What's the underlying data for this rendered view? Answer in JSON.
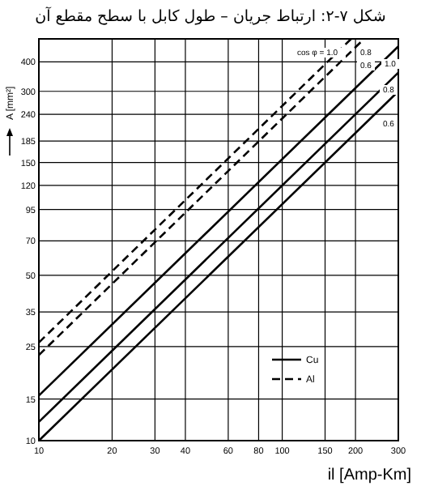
{
  "chart_data": {
    "type": "line",
    "title": "شکل ۷-۲: ارتباط جریان – طول کابل با سطح مقطع آن",
    "xlabel": "il [Amp-Km]",
    "ylabel": "A [mm²]",
    "log": "xy",
    "grid": true,
    "legend": "bottom right",
    "xlim": [
      10,
      300
    ],
    "ylim": [
      10,
      500
    ],
    "xticks": [
      10,
      20,
      30,
      40,
      60,
      80,
      100,
      150,
      200,
      300
    ],
    "yticks": [
      10,
      15,
      25,
      35,
      50,
      70,
      95,
      120,
      150,
      185,
      240,
      300,
      400
    ],
    "series": [
      {
        "name": "Cu",
        "color": "#000000",
        "line_style": "solid",
        "x": [
          10,
          300
        ],
        "values": [
          15.5,
          465
        ]
      },
      {
        "color": "#000000",
        "line_style": "solid",
        "x": [
          10,
          300
        ],
        "values": [
          12,
          360
        ]
      },
      {
        "color": "#000000",
        "line_style": "solid",
        "x": [
          10,
          300
        ],
        "values": [
          10,
          300
        ]
      },
      {
        "name": "Al",
        "color": "#000000",
        "line_style": "dashed",
        "x": [
          10,
          192
        ],
        "values": [
          26,
          500
        ]
      },
      {
        "color": "#000000",
        "line_style": "dashed",
        "x": [
          10,
          217
        ],
        "values": [
          23,
          500
        ]
      }
    ],
    "annotations": [
      "cos φ = 1.0",
      "0.8",
      "0.6",
      "1.0",
      "0.8",
      "0.6"
    ]
  }
}
